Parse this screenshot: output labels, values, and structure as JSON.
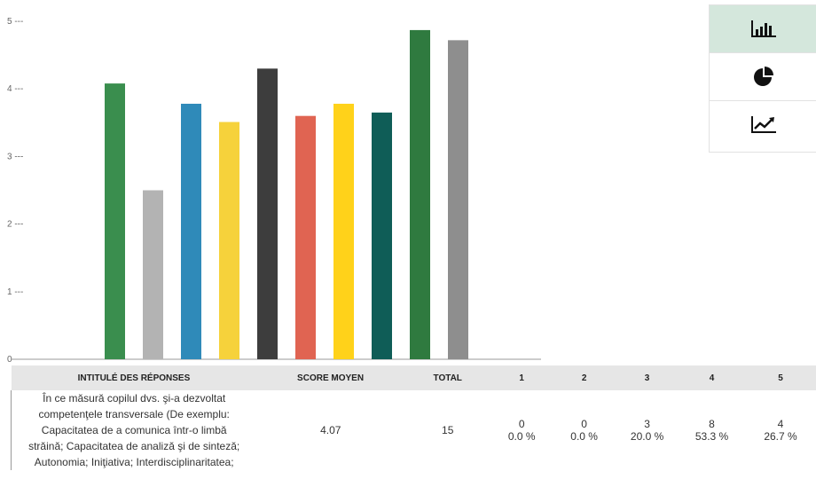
{
  "chart_data": {
    "type": "bar",
    "y_ticks": [
      "0 ---",
      "1 ---",
      "2 ---",
      "3 ---",
      "4 ---",
      "5 ---"
    ],
    "ylim": [
      0,
      5
    ],
    "values": [
      4.08,
      2.5,
      3.78,
      3.51,
      4.3,
      3.6,
      3.78,
      3.65,
      4.87,
      4.72
    ],
    "colors": [
      "#3a8e4e",
      "#b3b3b3",
      "#2f8ab9",
      "#f6d23b",
      "#3d3d3d",
      "#e06452",
      "#ffd21a",
      "#0f5d57",
      "#2f7a3f",
      "#8e8e8e"
    ],
    "grid": false
  },
  "switcher": {
    "buttons": [
      {
        "icon": "bar-chart-icon",
        "active": true
      },
      {
        "icon": "pie-chart-icon",
        "active": false
      },
      {
        "icon": "line-chart-icon",
        "active": false
      }
    ]
  },
  "table": {
    "headers": {
      "label": "INTITULÉ DES RÉPONSES",
      "score": "SCORE MOYEN",
      "total": "TOTAL",
      "c1": "1",
      "c2": "2",
      "c3": "3",
      "c4": "4",
      "c5": "5"
    },
    "row": {
      "question_lines": [
        "În ce măsură copilul dvs. şi-a dezvoltat",
        "competenţele transversale (De exemplu:",
        "Capacitatea de a comunica într-o limbă",
        "străină; Capacitatea de analiză şi de sinteză;",
        "Autonomia; Iniţiativa; Interdisciplinaritatea;"
      ],
      "score": "4.07",
      "total": "15",
      "counts": [
        "0",
        "0",
        "3",
        "8",
        "4"
      ],
      "percents": [
        "0.0 %",
        "0.0 %",
        "20.0 %",
        "53.3 %",
        "26.7 %"
      ]
    }
  }
}
